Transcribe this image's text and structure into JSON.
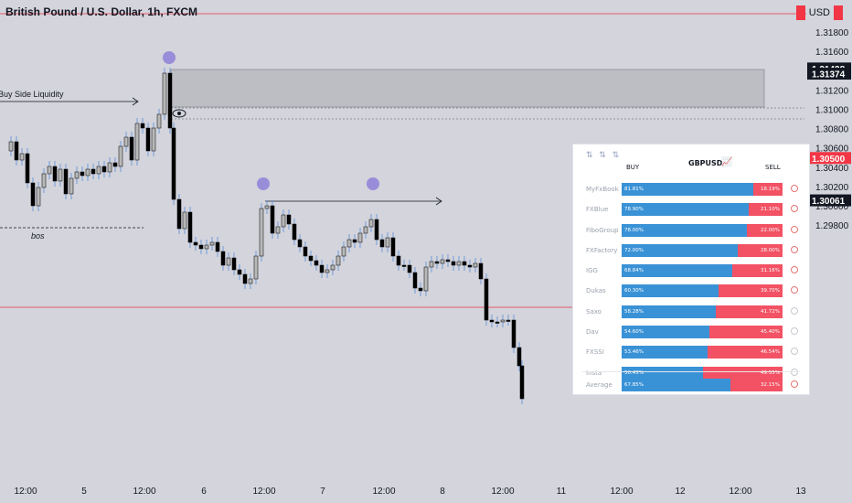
{
  "chart_title": "British Pound / U.S. Dollar, 1h, FXCM",
  "currency": "USD",
  "price_axis": {
    "ticks": [
      "1.31800",
      "1.31600",
      "1.31200",
      "1.31000",
      "1.30800",
      "1.30600",
      "1.30400",
      "1.30200",
      "1.30000",
      "1.29800"
    ],
    "labels_marked": [
      {
        "text": "1.31428",
        "color": "#131722",
        "text_color": "#ffffff"
      },
      {
        "text": "1.31374",
        "color": "#131722",
        "text_color": "#ffffff"
      },
      {
        "text": "1.30500",
        "color": "#f23645",
        "text_color": "#ffffff"
      },
      {
        "text": "1.30061",
        "color": "#131722",
        "text_color": "#ffffff"
      }
    ]
  },
  "time_axis": {
    "ticks": [
      "12:00",
      "5",
      "12:00",
      "6",
      "12:00",
      "7",
      "12:00",
      "8",
      "12:00",
      "11",
      "12:00",
      "12",
      "12:00",
      "13"
    ]
  },
  "annotations": {
    "buy_side_liquidity": "Buy Side Liquidity",
    "bos": "bos"
  },
  "sentiment_panel": {
    "pair": "GBPUSD",
    "buy_header": "BUY",
    "sell_header": "SELL",
    "rows": [
      {
        "name": "MyFxBook",
        "buy": "81.81%",
        "sell": "18.19%",
        "buy_pct": 81.81,
        "icon": "red"
      },
      {
        "name": "FXBlue",
        "buy": "78.90%",
        "sell": "21.10%",
        "buy_pct": 78.9,
        "icon": "red"
      },
      {
        "name": "FiboGroup",
        "buy": "78.00%",
        "sell": "22.00%",
        "buy_pct": 78.0,
        "icon": "red"
      },
      {
        "name": "FXFactory",
        "buy": "72.00%",
        "sell": "28.00%",
        "buy_pct": 72.0,
        "icon": "red"
      },
      {
        "name": "IGG",
        "buy": "68.84%",
        "sell": "31.16%",
        "buy_pct": 68.84,
        "icon": "red"
      },
      {
        "name": "Dukas",
        "buy": "60.30%",
        "sell": "39.70%",
        "buy_pct": 60.3,
        "icon": "red"
      },
      {
        "name": "Saxo",
        "buy": "58.28%",
        "sell": "41.72%",
        "buy_pct": 58.28,
        "icon": "gray"
      },
      {
        "name": "Dav",
        "buy": "54.60%",
        "sell": "45.40%",
        "buy_pct": 54.6,
        "icon": "gray"
      },
      {
        "name": "FXSSI",
        "buy": "53.46%",
        "sell": "46.54%",
        "buy_pct": 53.46,
        "icon": "gray"
      },
      {
        "name": "Insta",
        "buy": "50.45%",
        "sell": "49.55%",
        "buy_pct": 50.45,
        "icon": "gray"
      }
    ],
    "average": {
      "name": "Average",
      "buy": "67.85%",
      "sell": "32.15%",
      "buy_pct": 67.85,
      "icon": "red"
    }
  },
  "colors": {
    "background": "#d3d4dc",
    "bull_candle": "#b8b8b8",
    "bear_candle": "#000000",
    "wick": "#5b8fd6",
    "red_line": "#f23645",
    "buy_bar": "#3a92d6",
    "sell_bar": "#f25264",
    "marker": "#8e80d8"
  }
}
